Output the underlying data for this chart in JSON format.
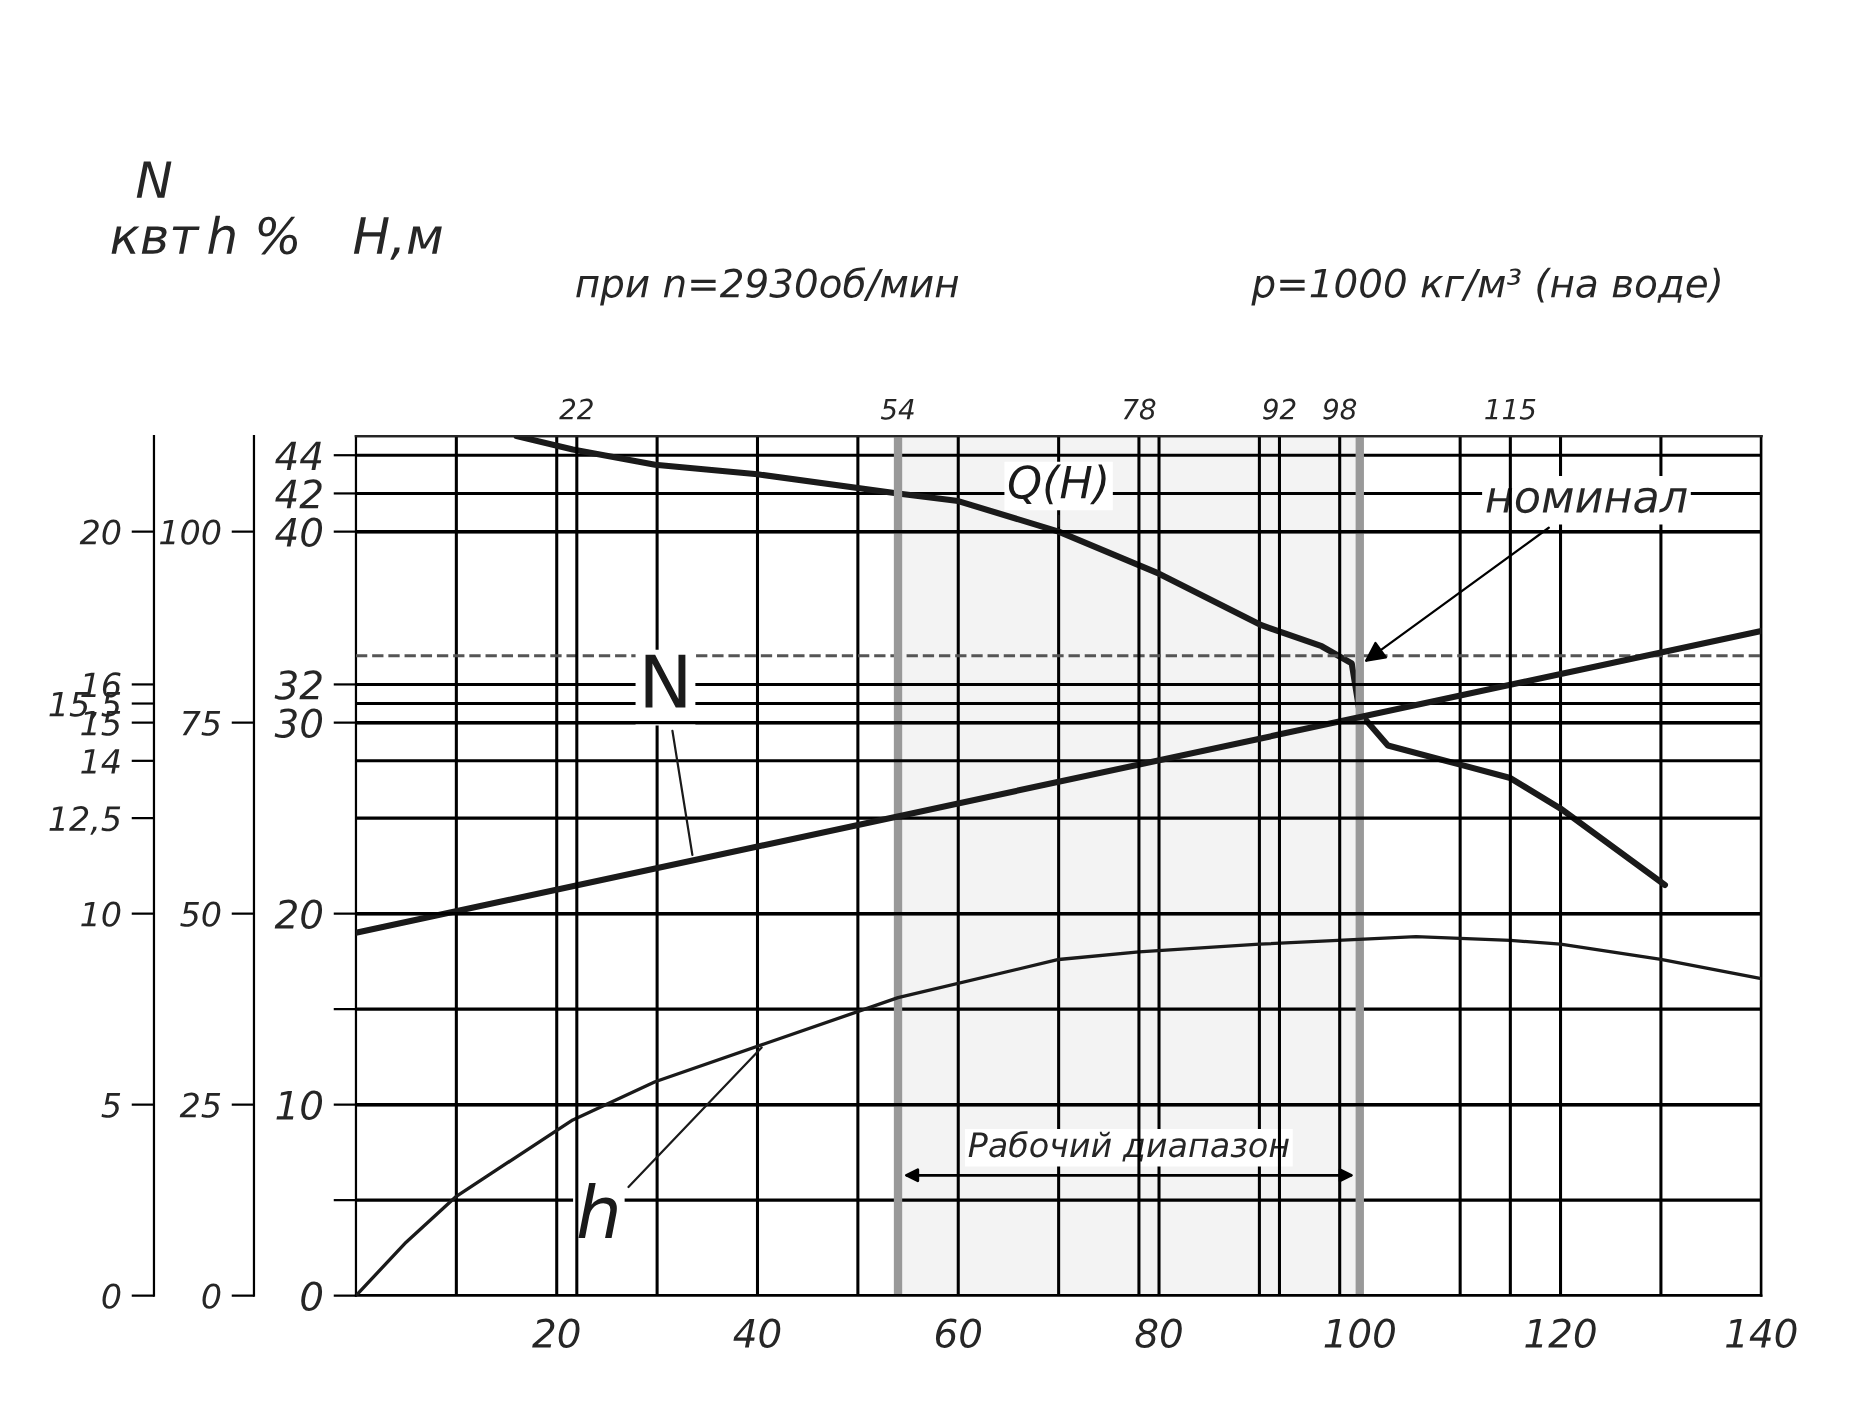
{
  "chart_data": {
    "type": "line",
    "annotations": [
      "при n=2930об/мин",
      "p=1000 кг/м³ (на воде)",
      {
        "text": "номинал",
        "x": 100,
        "y": 33
      }
    ],
    "xlim": [
      0,
      140
    ],
    "xticks": [
      {
        "value": 10,
        "label": null
      },
      20,
      {
        "value": 30,
        "label": null
      },
      40,
      {
        "value": 50,
        "label": null
      },
      60,
      {
        "value": 70,
        "label": null
      },
      80,
      {
        "value": 90,
        "label": null
      },
      100,
      {
        "value": 110,
        "label": null
      },
      120,
      {
        "value": 130,
        "label": null
      },
      140
    ],
    "x2lim": [
      0,
      140
    ],
    "x2ticks": [
      22,
      54,
      78,
      92,
      98,
      115
    ],
    "ylabel": "H,м",
    "ylim": [
      0,
      45
    ],
    "yticks": [
      0,
      {
        "value": 5,
        "label": null
      },
      10,
      {
        "value": 15,
        "label": null
      },
      20,
      30,
      32,
      40,
      42,
      44
    ],
    "y2label": "N\nквт",
    "y2lim": [
      0,
      22.5
    ],
    "y2ticks": [
      0,
      5,
      10,
      {
        "value": 12.5,
        "label": "12,5"
      },
      14,
      15,
      {
        "value": 15.5,
        "label": "15,5"
      },
      16,
      20
    ],
    "y3label": "h %",
    "y3lim": [
      0,
      112.5
    ],
    "y3ticks": [
      0,
      25,
      50,
      75,
      100
    ],
    "grid": true,
    "legend": false,
    "marker": "none",
    "line_style": "solid",
    "ref_lines": [
      {
        "axis": "y",
        "value": 33.5,
        "line_style": "dashed",
        "color": "#555555"
      }
    ],
    "bands": [
      {
        "axis": "x",
        "from": 54,
        "to": 100,
        "label": "Рабочий диапазон",
        "color": "#999999"
      }
    ],
    "series": [
      {
        "name": "Q(H)",
        "color": "#1a1a1a",
        "x": [
          16,
          21.6,
          29.8,
          40,
          54,
          60,
          70,
          80,
          90.2,
          96.2,
          99.2,
          100,
          102.8,
          110,
          115,
          120,
          130.4
        ],
        "values": [
          45,
          44.3,
          43.5,
          43,
          42,
          41.6,
          40,
          37.8,
          35.1,
          34,
          33.1,
          30.5,
          28.8,
          27.8,
          27.1,
          25.5,
          21.5
        ]
      },
      {
        "name": "N",
        "color": "#1a1a1a",
        "axis": "y2",
        "x": [
          0,
          140
        ],
        "values": [
          9.5,
          17.4
        ]
      },
      {
        "name": "h",
        "color": "#1a1a1a",
        "axis": "y3",
        "x": [
          0,
          5,
          10,
          21.6,
          29.8,
          40.8,
          54,
          70,
          78,
          90,
          105.6,
          115,
          120,
          130,
          140
        ],
        "values": [
          0,
          7,
          13,
          23,
          28,
          33,
          39,
          44,
          45,
          46,
          47,
          46.5,
          46,
          44,
          41.5
        ]
      }
    ]
  }
}
